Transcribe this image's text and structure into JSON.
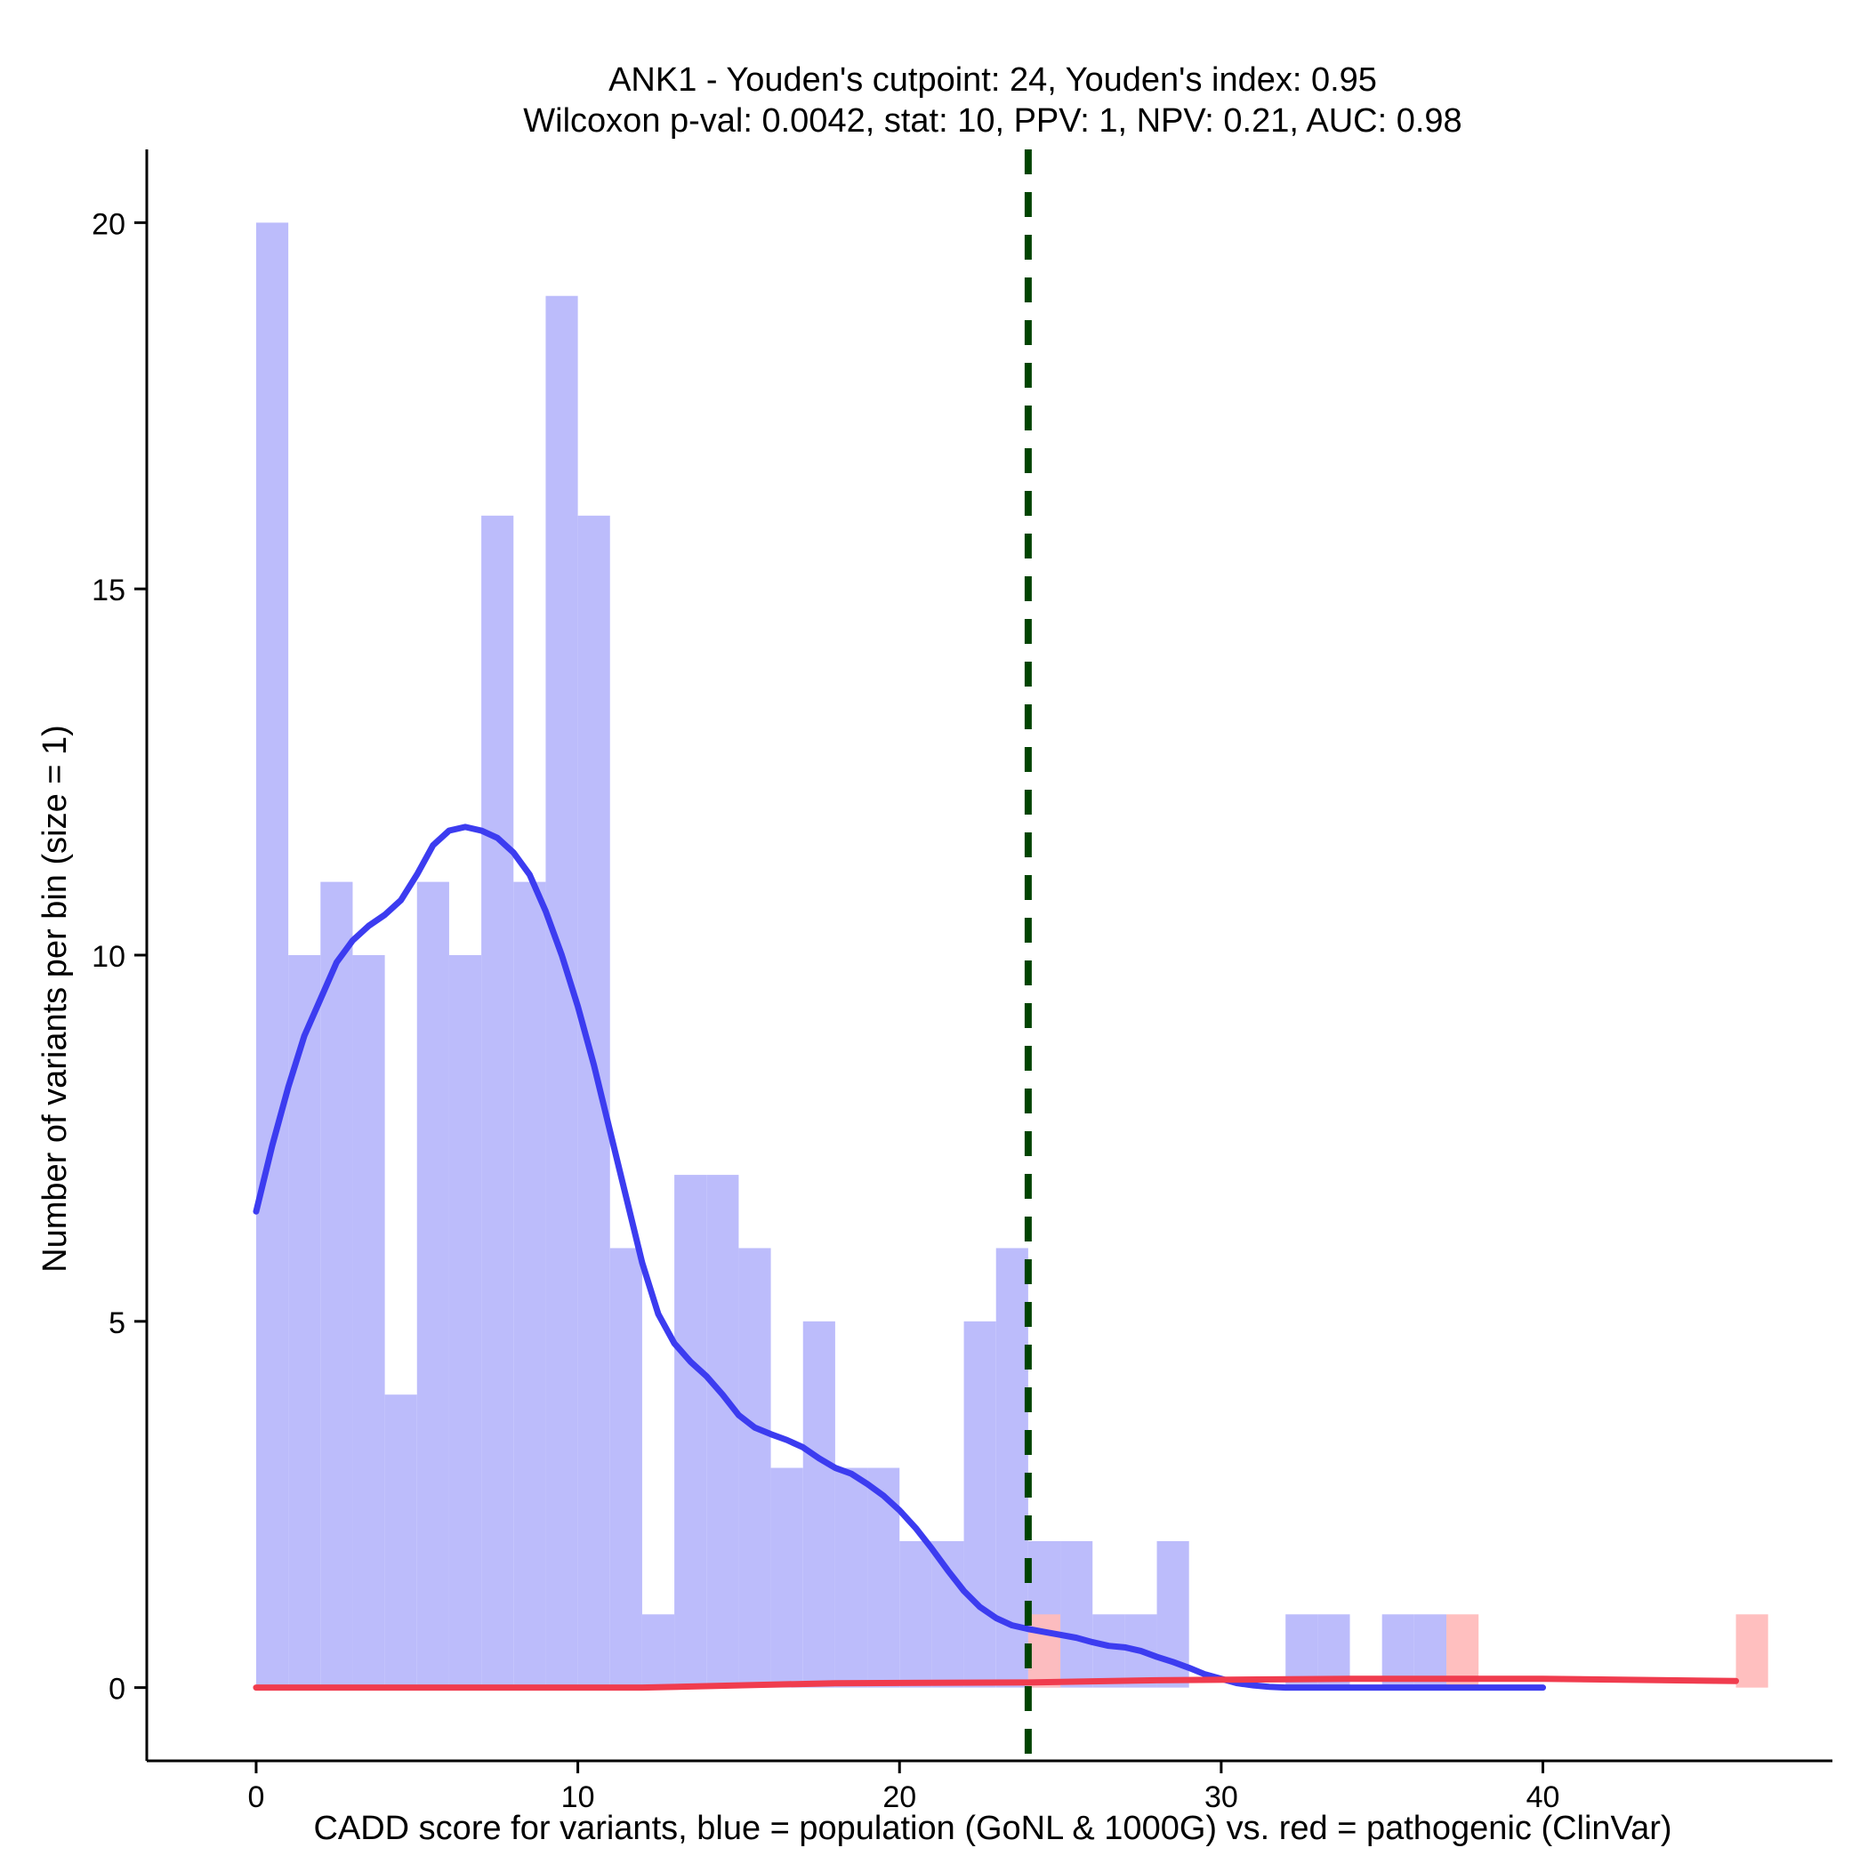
{
  "chart_data": {
    "type": "bar",
    "title": "ANK1 - Youden's cutpoint: 24, Youden's index: 0.95",
    "subtitle": "Wilcoxon p-val: 0.0042, stat: 10, PPV: 1, NPV: 0.21, AUC: 0.98",
    "xlabel": "CADD score for variants, blue = population (GoNL & 1000G) vs. red = pathogenic (ClinVar)",
    "ylabel": "Number of variants per bin (size = 1)",
    "xlim": [
      -3.4,
      49
    ],
    "ylim": [
      -1,
      21
    ],
    "x_ticks": [
      0,
      10,
      20,
      30,
      40
    ],
    "y_ticks": [
      0,
      5,
      10,
      15,
      20
    ],
    "grid": false,
    "bin_width": 1,
    "series": [
      {
        "bins": [
          {
            "x": 0,
            "y": 20
          },
          {
            "x": 1,
            "y": 10
          },
          {
            "x": 2,
            "y": 11
          },
          {
            "x": 3,
            "y": 10
          },
          {
            "x": 4,
            "y": 4
          },
          {
            "x": 5,
            "y": 11
          },
          {
            "x": 6,
            "y": 10
          },
          {
            "x": 7,
            "y": 16
          },
          {
            "x": 8,
            "y": 11
          },
          {
            "x": 9,
            "y": 19
          },
          {
            "x": 10,
            "y": 16
          },
          {
            "x": 11,
            "y": 6
          },
          {
            "x": 12,
            "y": 1
          },
          {
            "x": 13,
            "y": 7
          },
          {
            "x": 14,
            "y": 7
          },
          {
            "x": 15,
            "y": 6
          },
          {
            "x": 16,
            "y": 3
          },
          {
            "x": 17,
            "y": 5
          },
          {
            "x": 18,
            "y": 3
          },
          {
            "x": 19,
            "y": 3
          },
          {
            "x": 20,
            "y": 2
          },
          {
            "x": 21,
            "y": 2
          },
          {
            "x": 22,
            "y": 5
          },
          {
            "x": 23,
            "y": 6
          },
          {
            "x": 24,
            "y": 2
          },
          {
            "x": 25,
            "y": 2
          },
          {
            "x": 26,
            "y": 1
          },
          {
            "x": 27,
            "y": 1
          },
          {
            "x": 28,
            "y": 2
          },
          {
            "x": 32,
            "y": 1
          },
          {
            "x": 33,
            "y": 1
          },
          {
            "x": 35,
            "y": 1
          },
          {
            "x": 36,
            "y": 1
          }
        ],
        "density": [
          [
            0,
            6.5
          ],
          [
            0.5,
            7.4
          ],
          [
            1,
            8.2
          ],
          [
            1.5,
            8.9
          ],
          [
            2,
            9.4
          ],
          [
            2.5,
            9.9
          ],
          [
            3,
            10.2
          ],
          [
            3.5,
            10.4
          ],
          [
            4,
            10.55
          ],
          [
            4.5,
            10.75
          ],
          [
            5,
            11.1
          ],
          [
            5.5,
            11.5
          ],
          [
            6,
            11.7
          ],
          [
            6.5,
            11.75
          ],
          [
            7,
            11.7
          ],
          [
            7.5,
            11.6
          ],
          [
            8,
            11.4
          ],
          [
            8.5,
            11.1
          ],
          [
            9,
            10.6
          ],
          [
            9.5,
            10.0
          ],
          [
            10,
            9.3
          ],
          [
            10.5,
            8.5
          ],
          [
            11,
            7.6
          ],
          [
            11.5,
            6.7
          ],
          [
            12,
            5.8
          ],
          [
            12.5,
            5.1
          ],
          [
            13,
            4.7
          ],
          [
            13.5,
            4.45
          ],
          [
            14,
            4.25
          ],
          [
            14.5,
            4.0
          ],
          [
            15,
            3.72
          ],
          [
            15.5,
            3.55
          ],
          [
            16,
            3.46
          ],
          [
            16.5,
            3.38
          ],
          [
            17,
            3.28
          ],
          [
            17.5,
            3.13
          ],
          [
            18,
            3.0
          ],
          [
            18.5,
            2.92
          ],
          [
            19,
            2.78
          ],
          [
            19.5,
            2.62
          ],
          [
            20,
            2.42
          ],
          [
            20.5,
            2.18
          ],
          [
            21,
            1.9
          ],
          [
            21.5,
            1.6
          ],
          [
            22,
            1.32
          ],
          [
            22.5,
            1.1
          ],
          [
            23,
            0.95
          ],
          [
            23.5,
            0.85
          ],
          [
            24,
            0.8
          ],
          [
            24.5,
            0.76
          ],
          [
            25,
            0.72
          ],
          [
            25.5,
            0.68
          ],
          [
            26,
            0.62
          ],
          [
            26.5,
            0.57
          ],
          [
            27,
            0.55
          ],
          [
            27.5,
            0.5
          ],
          [
            28,
            0.42
          ],
          [
            28.5,
            0.35
          ],
          [
            29,
            0.27
          ],
          [
            29.5,
            0.18
          ],
          [
            30,
            0.12
          ],
          [
            30.5,
            0.06
          ],
          [
            31,
            0.03
          ],
          [
            31.5,
            0.01
          ],
          [
            32,
            0.0
          ],
          [
            33,
            0.0
          ],
          [
            34,
            0.0
          ],
          [
            35,
            0.0
          ],
          [
            36,
            0.0
          ],
          [
            37,
            0.0
          ],
          [
            38,
            0.0
          ],
          [
            39,
            0.0
          ],
          [
            40,
            0.0
          ]
        ],
        "color": "#0000ff"
      },
      {
        "bins": [
          {
            "x": 24,
            "y": 1
          },
          {
            "x": 37,
            "y": 1
          },
          {
            "x": 46,
            "y": 1
          }
        ],
        "density": [
          [
            0,
            0.0
          ],
          [
            12,
            0.0
          ],
          [
            18,
            0.06
          ],
          [
            24,
            0.07
          ],
          [
            28,
            0.1
          ],
          [
            34,
            0.12
          ],
          [
            40,
            0.12
          ],
          [
            46,
            0.09
          ]
        ],
        "color": "#ff0000"
      }
    ],
    "cutpoint": 24,
    "cutpoint_color": "#004400",
    "density_x_scale": 1.0
  }
}
